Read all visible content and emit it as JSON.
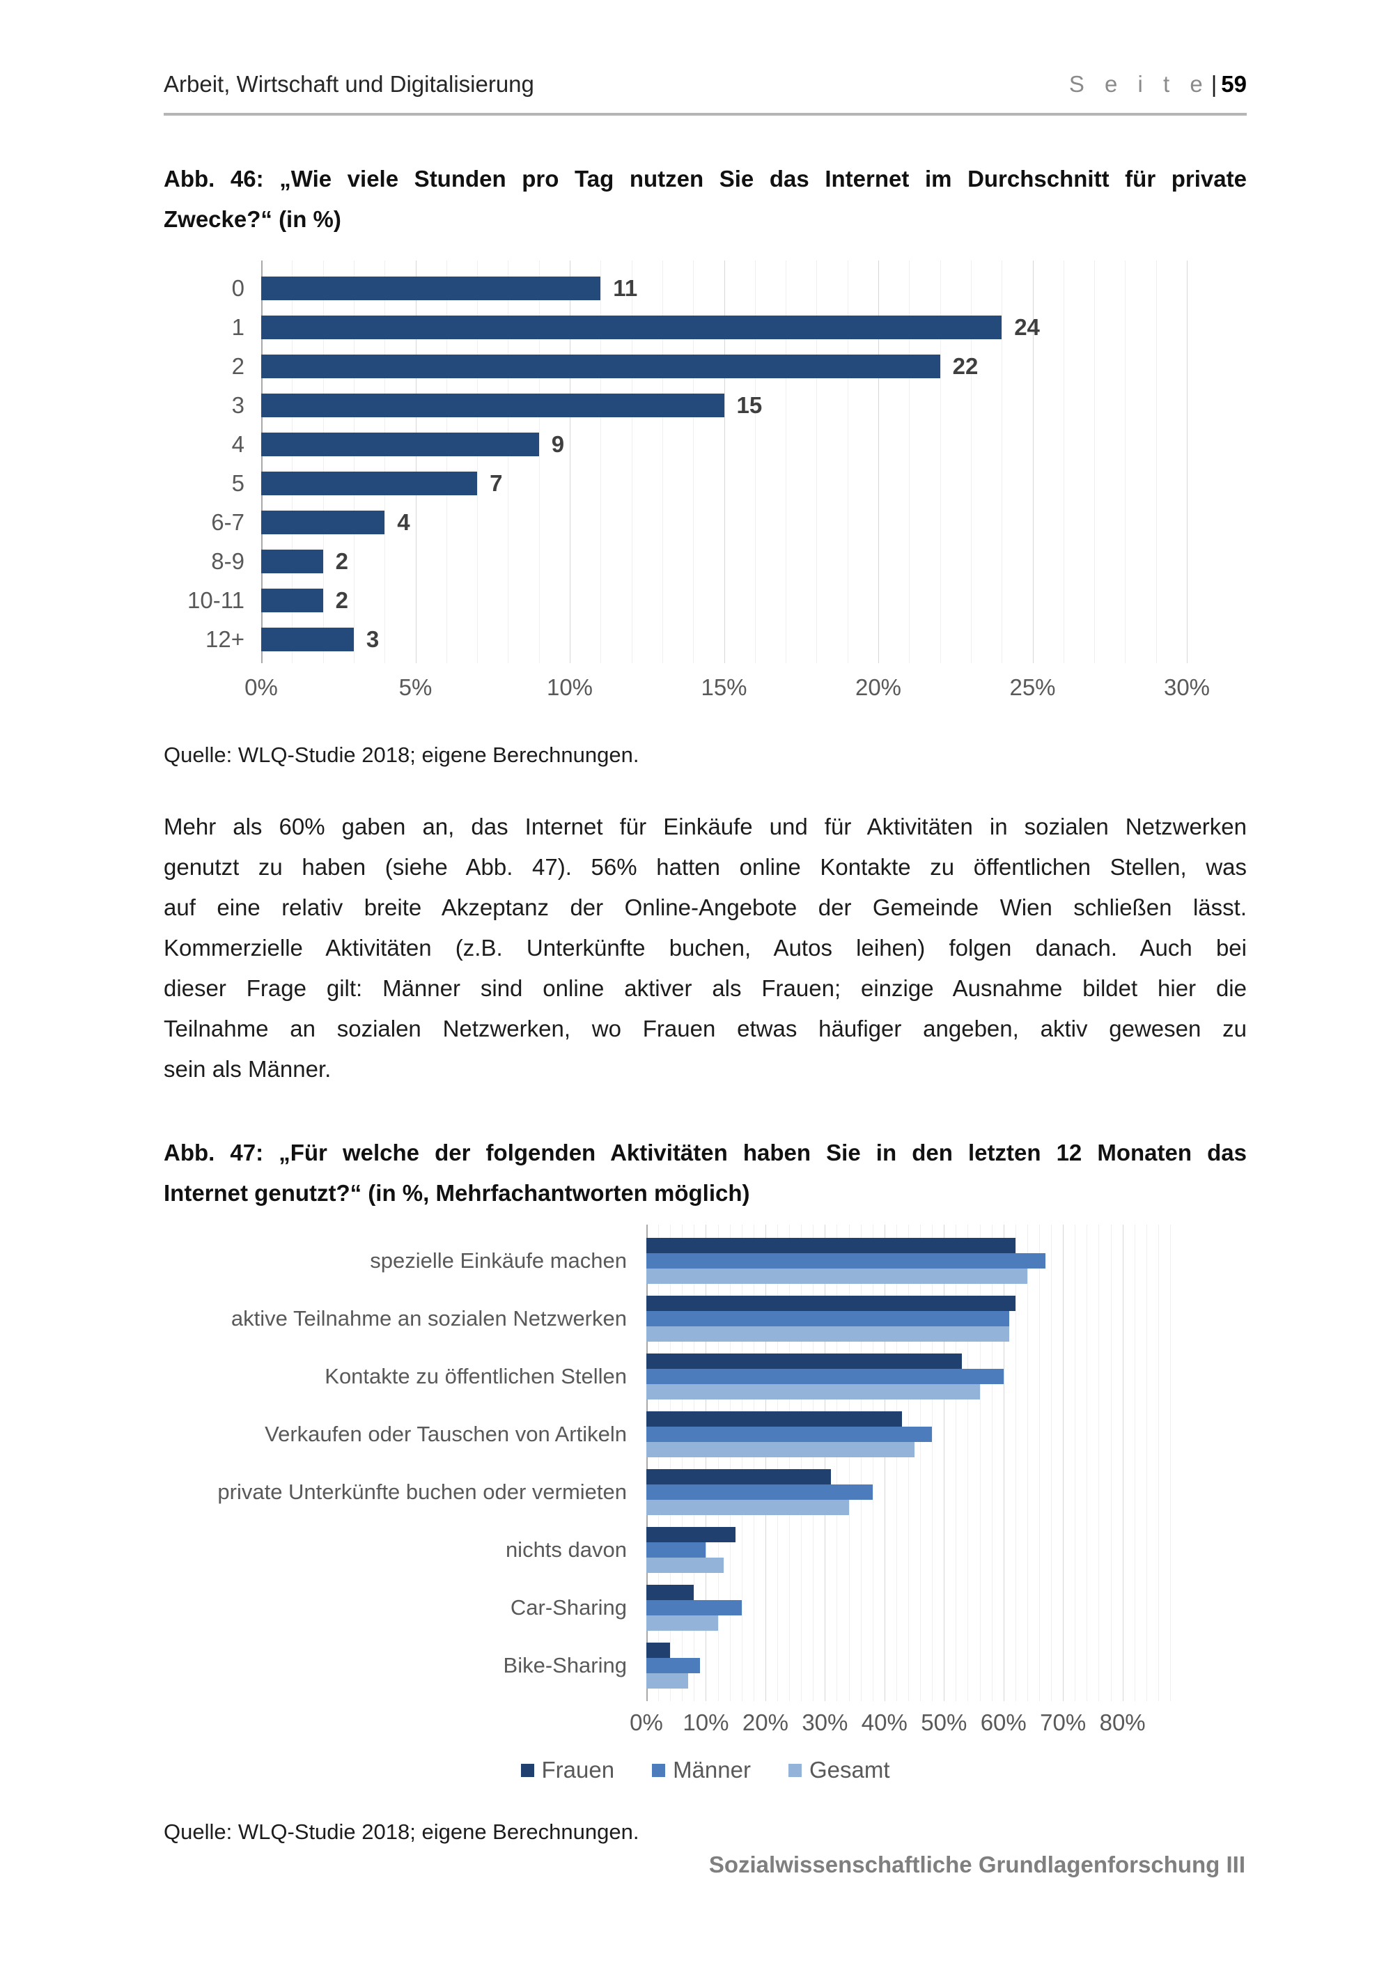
{
  "header": {
    "section_title": "Arbeit, Wirtschaft und Digitalisierung",
    "page_word": "S e i t e",
    "separator": "|",
    "page_number": "59"
  },
  "figure46": {
    "caption_lines": [
      "Abb. 46: „Wie viele Stunden pro Tag nutzen Sie das Internet im Durchschnitt für private",
      "Zwecke?“ (in %)"
    ],
    "source": "Quelle: WLQ-Studie 2018; eigene Berechnungen.",
    "chart_data": {
      "type": "bar",
      "orientation": "horizontal",
      "title": "Wie viele Stunden pro Tag nutzen Sie das Internet im Durchschnitt für private Zwecke? (in %)",
      "categories": [
        "0",
        "1",
        "2",
        "3",
        "4",
        "5",
        "6-7",
        "8-9",
        "10-11",
        "12+"
      ],
      "values": [
        11,
        24,
        22,
        15,
        9,
        7,
        4,
        2,
        2,
        3
      ],
      "data_labels": [
        11,
        24,
        22,
        15,
        9,
        7,
        4,
        2,
        2,
        3
      ],
      "bar_color": "#24497B",
      "xlim": [
        0,
        30
      ],
      "x_ticks": [
        "0%",
        "5%",
        "10%",
        "15%",
        "20%",
        "25%",
        "30%"
      ],
      "grid": "vertical, minor every 1%, major every 5%",
      "legend_position": "none"
    }
  },
  "paragraph_lines": [
    "Mehr als 60% gaben an, das Internet für Einkäufe und für Aktivitäten in sozialen Netzwerken",
    "genutzt zu haben (siehe Abb. 47). 56% hatten online Kontakte zu öffentlichen Stellen, was",
    "auf eine relativ breite Akzeptanz der Online-Angebote der Gemeinde Wien schließen lässt.",
    "Kommerzielle Aktivitäten (z.B. Unterkünfte buchen, Autos leihen) folgen danach. Auch bei",
    "dieser Frage gilt: Männer sind online aktiver als Frauen; einzige Ausnahme bildet hier die",
    "Teilnahme an sozialen Netzwerken, wo Frauen etwas häufiger angeben, aktiv gewesen zu",
    "sein als Männer."
  ],
  "figure47": {
    "caption_lines": [
      "Abb. 47: „Für welche der folgenden Aktivitäten haben Sie in den letzten 12 Monaten das",
      "Internet genutzt?“ (in %, Mehrfachantworten möglich)"
    ],
    "source": "Quelle: WLQ-Studie 2018; eigene Berechnungen.",
    "chart_data": {
      "type": "bar",
      "orientation": "horizontal",
      "title": "Für welche der folgenden Aktivitäten haben Sie in den letzten 12 Monaten das Internet genutzt? (in %, Mehrfachantworten möglich)",
      "categories": [
        "spezielle Einkäufe machen",
        "aktive Teilnahme an sozialen Netzwerken",
        "Kontakte zu öffentlichen Stellen",
        "Verkaufen oder Tauschen von Artikeln",
        "private Unterkünfte buchen oder vermieten",
        "nichts davon",
        "Car-Sharing",
        "Bike-Sharing"
      ],
      "series": [
        {
          "name": "Frauen",
          "color": "#204070",
          "values": [
            62,
            62,
            53,
            43,
            31,
            15,
            8,
            4
          ]
        },
        {
          "name": "Männer",
          "color": "#4C7CBB",
          "values": [
            67,
            61,
            60,
            48,
            38,
            10,
            16,
            9
          ]
        },
        {
          "name": "Gesamt",
          "color": "#94B3D9",
          "values": [
            64,
            61,
            56,
            45,
            34,
            13,
            12,
            7
          ]
        }
      ],
      "xlim": [
        0,
        88
      ],
      "x_ticks": [
        "0%",
        "10%",
        "20%",
        "30%",
        "40%",
        "50%",
        "60%",
        "70%",
        "80%"
      ],
      "grid": "vertical, minor every 2%, major every 10%",
      "legend_position": "bottom"
    }
  },
  "footer": {
    "text": "Sozialwissenschaftliche Grundlagenforschung III"
  }
}
